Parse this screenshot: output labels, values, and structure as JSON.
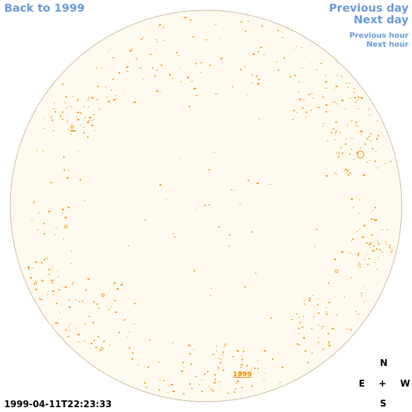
{
  "nav": {
    "back": "Back to 1999",
    "previous_day": "Previous day",
    "next_day": "Next day",
    "previous_hour": "Previous hour",
    "next_hour": "Next hour"
  },
  "sun": {
    "disk_fill": "#fffaf0",
    "disk_stroke": "#c8b89a",
    "mark_color": "#f08c00",
    "year_label": "1999"
  },
  "compass": {
    "north": "N",
    "south": "S",
    "east": "E",
    "west": "W",
    "center": "+"
  },
  "timestamp": "1999-04-11T22:23:33"
}
